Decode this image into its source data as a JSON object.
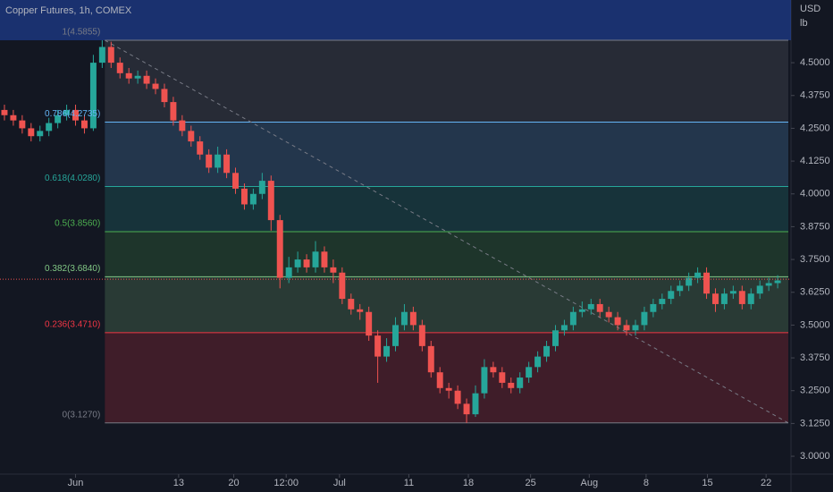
{
  "chart_data": {
    "type": "candlestick",
    "title": "Copper Futures, 1h, COMEX",
    "currency": "USD",
    "unit": "lb",
    "up_color": "#26a69a",
    "down_color": "#ef5350",
    "xlim": [
      -0.5,
      88.5
    ],
    "xticks": [
      {
        "value": 8,
        "label": "Jun"
      },
      {
        "value": 19.6,
        "label": "13"
      },
      {
        "value": 25.8,
        "label": "20"
      },
      {
        "value": 31.7,
        "label": "12:00"
      },
      {
        "value": 37.7,
        "label": "Jul"
      },
      {
        "value": 45.5,
        "label": "11"
      },
      {
        "value": 52.2,
        "label": "18"
      },
      {
        "value": 59.2,
        "label": "25"
      },
      {
        "value": 65.8,
        "label": "Aug"
      },
      {
        "value": 72.2,
        "label": "8"
      },
      {
        "value": 79.1,
        "label": "15"
      },
      {
        "value": 85.7,
        "label": "22"
      }
    ],
    "ylim": [
      2.932,
      4.739
    ],
    "yticks": [
      {
        "value": 3.0,
        "label": "3.0000"
      },
      {
        "value": 3.125,
        "label": "3.1250"
      },
      {
        "value": 3.25,
        "label": "3.2500"
      },
      {
        "value": 3.375,
        "label": "3.3750"
      },
      {
        "value": 3.5,
        "label": "3.5000"
      },
      {
        "value": 3.625,
        "label": "3.6250"
      },
      {
        "value": 3.75,
        "label": "3.7500"
      },
      {
        "value": 3.875,
        "label": "3.8750"
      },
      {
        "value": 4.0,
        "label": "4.0000"
      },
      {
        "value": 4.125,
        "label": "4.1250"
      },
      {
        "value": 4.25,
        "label": "4.2500"
      },
      {
        "value": 4.375,
        "label": "4.3750"
      },
      {
        "value": 4.5,
        "label": "4.5000"
      }
    ],
    "open": [
      4.32,
      4.3,
      4.28,
      4.25,
      4.22,
      4.24,
      4.27,
      4.3,
      4.32,
      4.28,
      4.25,
      4.5,
      4.56,
      4.5,
      4.46,
      4.44,
      4.45,
      4.42,
      4.4,
      4.35,
      4.28,
      4.24,
      4.2,
      4.15,
      4.1,
      4.15,
      4.08,
      4.02,
      3.96,
      4.0,
      4.05,
      3.9,
      3.68,
      3.72,
      3.75,
      3.72,
      3.78,
      3.72,
      3.7,
      3.6,
      3.56,
      3.55,
      3.46,
      3.38,
      3.42,
      3.5,
      3.55,
      3.5,
      3.42,
      3.32,
      3.26,
      3.25,
      3.2,
      3.16,
      3.24,
      3.34,
      3.32,
      3.28,
      3.26,
      3.3,
      3.34,
      3.38,
      3.42,
      3.48,
      3.5,
      3.55,
      3.56,
      3.58,
      3.55,
      3.53,
      3.5,
      3.48,
      3.5,
      3.55,
      3.58,
      3.6,
      3.63,
      3.65,
      3.68,
      3.7,
      3.62,
      3.58,
      3.62,
      3.63,
      3.58,
      3.62,
      3.65,
      3.66
    ],
    "high": [
      4.34,
      4.32,
      4.3,
      4.27,
      4.26,
      4.29,
      4.32,
      4.34,
      4.34,
      4.3,
      4.53,
      4.5855,
      4.58,
      4.52,
      4.48,
      4.47,
      4.47,
      4.44,
      4.42,
      4.37,
      4.3,
      4.26,
      4.22,
      4.17,
      4.18,
      4.17,
      4.1,
      4.04,
      4.02,
      4.08,
      4.07,
      3.92,
      3.76,
      3.78,
      3.77,
      3.82,
      3.8,
      3.75,
      3.72,
      3.62,
      3.58,
      3.57,
      3.48,
      3.45,
      3.53,
      3.58,
      3.57,
      3.52,
      3.44,
      3.34,
      3.28,
      3.27,
      3.22,
      3.27,
      3.37,
      3.36,
      3.34,
      3.3,
      3.32,
      3.36,
      3.4,
      3.44,
      3.5,
      3.52,
      3.57,
      3.59,
      3.6,
      3.6,
      3.57,
      3.55,
      3.52,
      3.52,
      3.57,
      3.6,
      3.62,
      3.65,
      3.67,
      3.7,
      3.72,
      3.72,
      3.64,
      3.64,
      3.65,
      3.65,
      3.64,
      3.67,
      3.68,
      3.69
    ],
    "low": [
      4.28,
      4.26,
      4.23,
      4.2,
      4.2,
      4.22,
      4.25,
      4.28,
      4.26,
      4.23,
      4.24,
      4.48,
      4.48,
      4.44,
      4.42,
      4.42,
      4.4,
      4.38,
      4.33,
      4.26,
      4.22,
      4.18,
      4.13,
      4.08,
      4.08,
      4.06,
      4.0,
      3.94,
      3.94,
      3.98,
      3.86,
      3.64,
      3.66,
      3.7,
      3.7,
      3.7,
      3.7,
      3.66,
      3.58,
      3.54,
      3.52,
      3.44,
      3.28,
      3.36,
      3.4,
      3.48,
      3.48,
      3.4,
      3.3,
      3.24,
      3.22,
      3.18,
      3.127,
      3.15,
      3.22,
      3.3,
      3.26,
      3.24,
      3.24,
      3.28,
      3.32,
      3.36,
      3.4,
      3.46,
      3.48,
      3.53,
      3.54,
      3.53,
      3.51,
      3.48,
      3.46,
      3.46,
      3.48,
      3.53,
      3.56,
      3.58,
      3.61,
      3.63,
      3.66,
      3.6,
      3.55,
      3.56,
      3.6,
      3.56,
      3.56,
      3.6,
      3.63,
      3.64
    ],
    "close": [
      4.3,
      4.28,
      4.25,
      4.22,
      4.24,
      4.27,
      4.3,
      4.32,
      4.28,
      4.25,
      4.5,
      4.56,
      4.5,
      4.46,
      4.44,
      4.45,
      4.42,
      4.4,
      4.35,
      4.28,
      4.24,
      4.2,
      4.15,
      4.1,
      4.15,
      4.08,
      4.02,
      3.96,
      4.0,
      4.05,
      3.9,
      3.68,
      3.72,
      3.75,
      3.72,
      3.78,
      3.72,
      3.7,
      3.6,
      3.56,
      3.55,
      3.46,
      3.38,
      3.42,
      3.5,
      3.55,
      3.5,
      3.42,
      3.32,
      3.26,
      3.25,
      3.2,
      3.16,
      3.24,
      3.34,
      3.32,
      3.28,
      3.26,
      3.3,
      3.34,
      3.38,
      3.42,
      3.48,
      3.5,
      3.55,
      3.56,
      3.58,
      3.55,
      3.53,
      3.5,
      3.48,
      3.5,
      3.55,
      3.58,
      3.6,
      3.63,
      3.65,
      3.68,
      3.7,
      3.62,
      3.58,
      3.62,
      3.63,
      3.58,
      3.62,
      3.65,
      3.66,
      3.67
    ],
    "last_price": 3.675,
    "fib_start": 11.3,
    "fib_end": 88.2,
    "fib_levels": [
      {
        "label": "1(4.5855)",
        "value": 4.5855,
        "color": "#787b86"
      },
      {
        "label": "0.786(4.2735)",
        "value": 4.2735,
        "color": "#64b5f6"
      },
      {
        "label": "0.618(4.0280)",
        "value": 4.028,
        "color": "#26a69a"
      },
      {
        "label": "0.5(3.8560)",
        "value": 3.856,
        "color": "#4caf50"
      },
      {
        "label": "0.382(3.6840)",
        "value": 3.684,
        "color": "#81c784"
      },
      {
        "label": "0.236(3.4710)",
        "value": 3.471,
        "color": "#f23645"
      },
      {
        "label": "0(3.1270)",
        "value": 3.127,
        "color": "#787b86"
      }
    ]
  }
}
